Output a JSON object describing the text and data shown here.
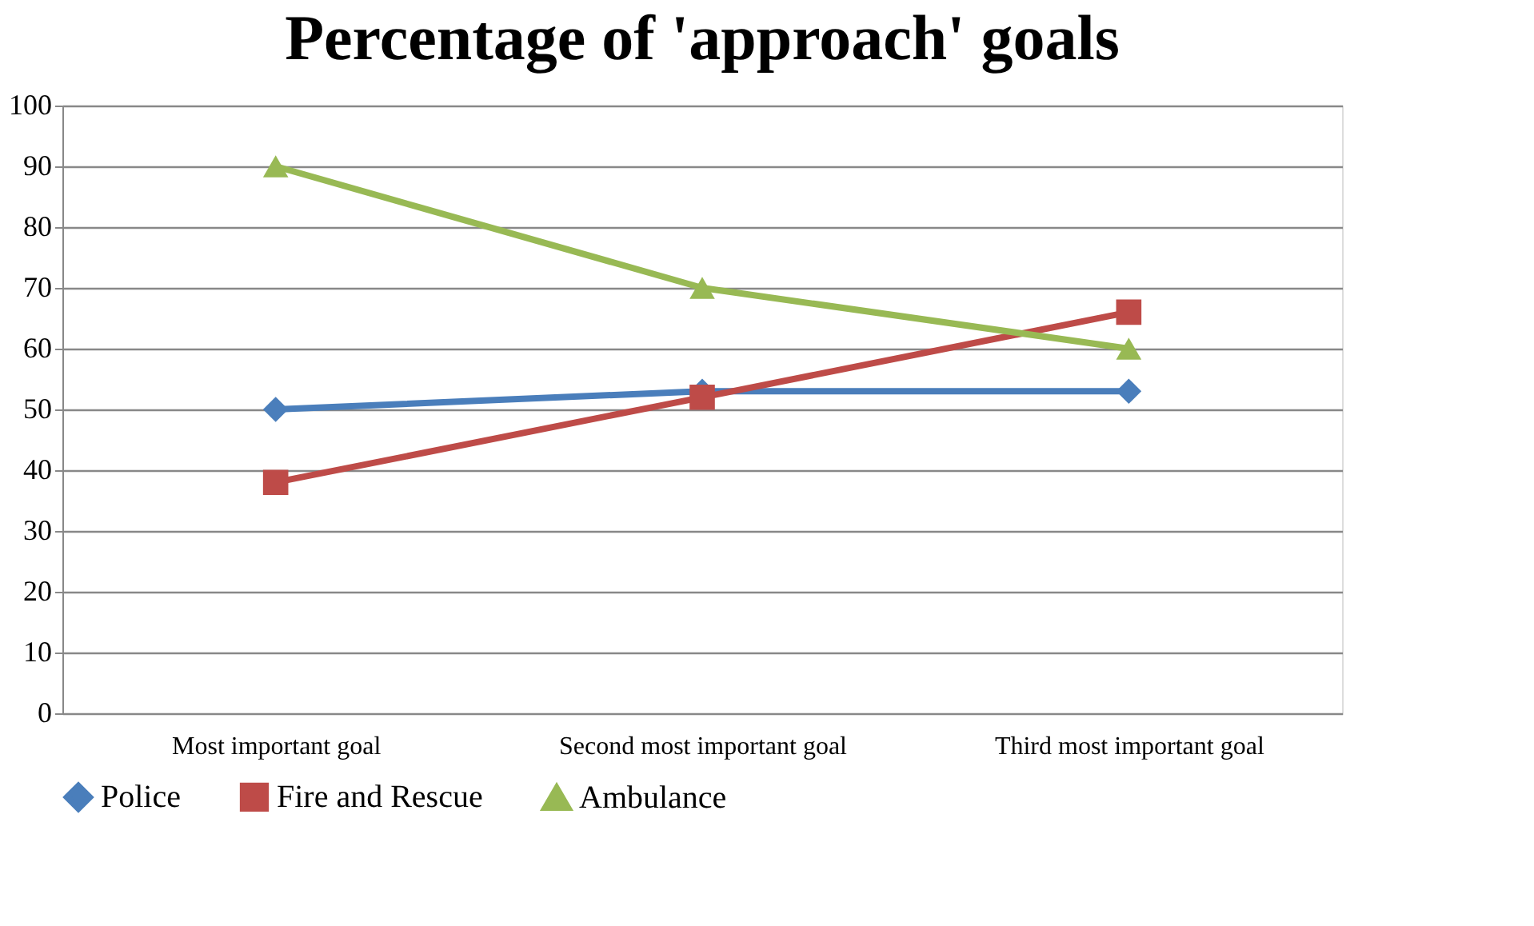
{
  "chart_data": {
    "type": "line",
    "title": "Percentage of 'approach' goals",
    "categories": [
      "Most important goal",
      "Second most important goal",
      "Third most important goal"
    ],
    "series": [
      {
        "name": "Police",
        "color": "#4a7ebb",
        "marker": "diamond",
        "values": [
          50,
          53,
          53
        ]
      },
      {
        "name": "Fire and Rescue",
        "color": "#be4b48",
        "marker": "square",
        "values": [
          38,
          52,
          66
        ]
      },
      {
        "name": "Ambulance",
        "color": "#98b954",
        "marker": "triangle",
        "values": [
          90,
          70,
          60
        ]
      }
    ],
    "ylim": [
      0,
      100
    ],
    "yticks": [
      0,
      10,
      20,
      30,
      40,
      50,
      60,
      70,
      80,
      90,
      100
    ],
    "grid": "y",
    "legend": "bottom"
  }
}
